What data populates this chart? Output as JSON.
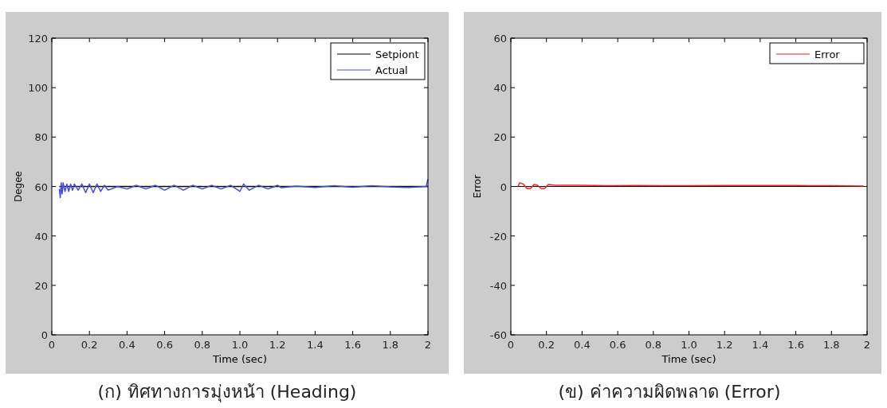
{
  "chart_data": [
    {
      "type": "line",
      "title": "(ก) ทิศทางการมุ่งหน้า (Heading)",
      "xlabel": "Time (sec)",
      "ylabel": "Degee",
      "xlim": [
        0,
        2
      ],
      "ylim": [
        0,
        120
      ],
      "xticks": [
        0,
        0.2,
        0.4,
        0.6,
        0.8,
        {
          "value": 1,
          "label": "1.0"
        },
        1.2,
        1.4,
        1.6,
        1.8,
        2
      ],
      "yticks": [
        0,
        20,
        40,
        60,
        80,
        100,
        120
      ],
      "grid": false,
      "legend": "top right",
      "series": [
        {
          "name": "Setpiont",
          "color": "#000000",
          "x": [
            0.04,
            2
          ],
          "values": [
            60,
            60
          ]
        },
        {
          "name": "Actual",
          "color": "#4050d8",
          "x": [
            0.04,
            0.045,
            0.05,
            0.055,
            0.06,
            0.07,
            0.08,
            0.09,
            0.1,
            0.11,
            0.12,
            0.14,
            0.16,
            0.18,
            0.2,
            0.22,
            0.24,
            0.26,
            0.28,
            0.3,
            0.35,
            0.4,
            0.45,
            0.5,
            0.55,
            0.6,
            0.65,
            0.7,
            0.75,
            0.8,
            0.85,
            0.9,
            0.95,
            1.0,
            1.02,
            1.05,
            1.1,
            1.15,
            1.2,
            1.22,
            1.3,
            1.4,
            1.5,
            1.6,
            1.7,
            1.8,
            1.9,
            1.99,
            2.0
          ],
          "values": [
            59,
            55.5,
            61.5,
            57,
            61.5,
            58,
            61,
            58,
            61,
            58.5,
            61,
            58.5,
            61,
            57.5,
            61,
            57.5,
            61,
            58,
            60.5,
            58.5,
            60,
            59,
            60.5,
            59,
            60.5,
            58.5,
            60.5,
            58.5,
            60.5,
            59,
            60.5,
            59,
            60.5,
            58,
            61,
            58.5,
            60.5,
            59,
            60.5,
            59.5,
            60.2,
            59.6,
            60.3,
            59.7,
            60.3,
            59.8,
            59.6,
            60,
            63
          ]
        }
      ]
    },
    {
      "type": "line",
      "title": "(ข) ค่าความผิดพลาด (Error)",
      "xlabel": "Time (sec)",
      "ylabel": "Error",
      "xlim": [
        0,
        2
      ],
      "ylim": [
        -60,
        60
      ],
      "xticks": [
        0,
        0.2,
        0.4,
        0.6,
        0.8,
        {
          "value": 1,
          "label": "1.0"
        },
        1.2,
        1.4,
        1.6,
        1.8,
        2
      ],
      "yticks": [
        -60,
        -40,
        -20,
        0,
        20,
        40,
        60
      ],
      "grid": false,
      "legend": "top right",
      "ref_lines": [
        {
          "axis": "y",
          "value": 0,
          "color": "#000000"
        }
      ],
      "series": [
        {
          "name": "Error",
          "color": "#ff1a1a",
          "x": [
            0.04,
            0.05,
            0.07,
            0.09,
            0.11,
            0.13,
            0.15,
            0.17,
            0.19,
            0.21,
            0.25,
            0.4,
            0.55,
            0.7,
            0.85,
            1.0,
            1.2,
            1.4,
            1.6,
            1.8,
            1.98
          ],
          "values": [
            0,
            1.5,
            1,
            -0.8,
            -0.8,
            0.8,
            0.5,
            -0.8,
            -0.8,
            0.8,
            0.5,
            0.5,
            0.3,
            0.4,
            0.3,
            0.3,
            0.4,
            0.4,
            0.4,
            0.3,
            0.2
          ]
        }
      ]
    }
  ]
}
